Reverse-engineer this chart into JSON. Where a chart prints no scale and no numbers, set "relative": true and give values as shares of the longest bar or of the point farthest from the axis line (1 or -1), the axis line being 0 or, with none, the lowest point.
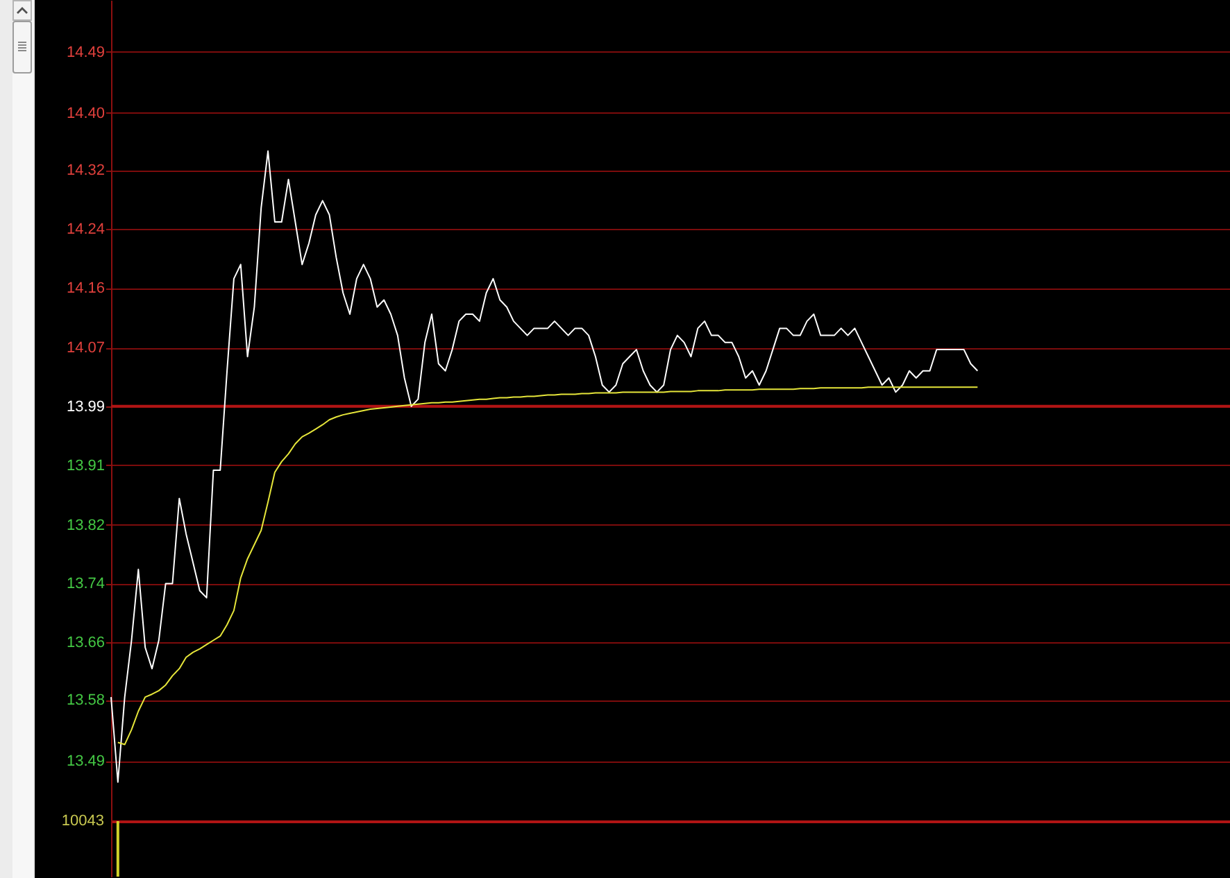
{
  "chart_data": [
    {
      "type": "line",
      "categories": [
        null,
        null,
        null,
        null,
        null,
        null,
        null,
        null,
        null,
        null,
        null,
        null,
        null,
        null,
        null,
        null,
        null,
        null,
        null,
        null,
        null,
        null,
        null,
        null,
        null,
        null,
        null,
        null,
        null,
        null,
        null,
        null,
        null,
        null,
        null,
        null,
        null,
        null,
        null,
        null,
        null,
        null,
        null,
        null,
        null,
        null,
        null,
        null,
        null,
        null,
        null,
        null,
        null,
        null,
        null,
        null,
        null,
        null,
        null,
        null,
        null,
        null,
        null,
        null,
        null,
        null,
        null,
        null,
        null,
        null,
        null,
        null,
        null,
        null,
        null,
        null,
        null,
        null,
        null,
        null,
        null,
        null,
        null,
        null,
        null,
        null,
        null,
        null,
        null,
        null,
        null,
        null,
        null,
        null,
        null,
        null,
        null,
        null,
        null,
        null,
        null,
        null,
        null,
        null,
        null,
        null,
        null,
        null,
        null,
        null,
        null,
        null,
        null,
        null,
        null,
        null,
        null,
        null,
        null,
        null,
        null,
        null,
        null,
        null,
        null,
        null,
        null,
        null,
        null,
        null,
        null,
        null,
        null,
        null,
        null,
        null,
        null,
        null,
        null,
        null,
        null,
        null,
        null,
        null,
        null,
        null,
        null,
        null,
        null,
        null,
        null,
        null,
        null,
        null,
        null,
        null,
        null,
        null,
        null,
        null,
        null,
        null,
        null,
        null,
        null
      ],
      "series": [
        {
          "color": "#ffffff",
          "values": [
            13.58,
            13.46,
            13.58,
            13.66,
            13.76,
            13.65,
            13.62,
            13.66,
            13.74,
            13.74,
            13.86,
            13.81,
            13.77,
            13.73,
            13.72,
            13.9,
            13.9,
            14.04,
            14.17,
            14.19,
            14.06,
            14.13,
            14.27,
            14.35,
            14.25,
            14.25,
            14.31,
            14.25,
            14.19,
            14.22,
            14.26,
            14.28,
            14.26,
            14.2,
            14.15,
            14.12,
            14.17,
            14.19,
            14.17,
            14.13,
            14.14,
            14.12,
            14.09,
            14.03,
            13.99,
            14.0,
            14.08,
            14.12,
            14.05,
            14.04,
            14.07,
            14.11,
            14.12,
            14.12,
            14.11,
            14.15,
            14.17,
            14.14,
            14.13,
            14.11,
            14.1,
            14.09,
            14.1,
            14.1,
            14.1,
            14.11,
            14.1,
            14.09,
            14.1,
            14.1,
            14.09,
            14.06,
            14.02,
            14.01,
            14.02,
            14.05,
            14.06,
            14.07,
            14.04,
            14.02,
            14.01,
            14.02,
            14.07,
            14.09,
            14.08,
            14.06,
            14.1,
            14.11,
            14.09,
            14.09,
            14.08,
            14.08,
            14.06,
            14.03,
            14.04,
            14.02,
            14.04,
            14.07,
            14.1,
            14.1,
            14.09,
            14.09,
            14.11,
            14.12,
            14.09,
            14.09,
            14.09,
            14.1,
            14.09,
            14.1,
            14.08,
            14.06,
            14.04,
            14.02,
            14.03,
            14.01,
            14.02,
            14.04,
            14.03,
            14.04,
            14.04,
            14.07,
            14.07,
            14.07,
            14.07,
            14.07,
            14.05,
            14.04,
            null,
            null,
            null,
            null,
            null,
            null,
            null,
            null,
            null,
            null,
            null,
            null,
            null,
            null,
            null,
            null,
            null,
            null,
            null,
            null,
            null,
            null,
            null,
            null,
            null,
            null,
            null,
            null,
            null,
            null,
            null,
            null,
            null,
            null,
            null,
            null,
            null
          ]
        },
        {
          "color": "#e6e63a",
          "values": [
            null,
            13.516,
            13.513,
            13.534,
            13.56,
            13.58,
            13.584,
            13.589,
            13.597,
            13.61,
            13.62,
            13.636,
            13.643,
            13.648,
            13.654,
            13.66,
            13.666,
            13.682,
            13.702,
            13.748,
            13.775,
            13.795,
            13.815,
            13.855,
            13.897,
            13.912,
            13.923,
            13.937,
            13.947,
            13.952,
            13.958,
            13.964,
            13.971,
            13.975,
            13.978,
            13.98,
            13.982,
            13.984,
            13.986,
            13.987,
            13.988,
            13.989,
            13.99,
            13.991,
            13.992,
            13.993,
            13.994,
            13.995,
            13.995,
            13.996,
            13.996,
            13.997,
            13.998,
            13.999,
            14.0,
            14.0,
            14.001,
            14.002,
            14.002,
            14.003,
            14.003,
            14.004,
            14.004,
            14.005,
            14.006,
            14.006,
            14.007,
            14.007,
            14.007,
            14.008,
            14.008,
            14.009,
            14.009,
            14.009,
            14.009,
            14.01,
            14.01,
            14.01,
            14.01,
            14.01,
            14.01,
            14.01,
            14.011,
            14.011,
            14.011,
            14.011,
            14.012,
            14.012,
            14.012,
            14.012,
            14.013,
            14.013,
            14.013,
            14.013,
            14.013,
            14.014,
            14.014,
            14.014,
            14.014,
            14.014,
            14.014,
            14.015,
            14.015,
            14.015,
            14.016,
            14.016,
            14.016,
            14.016,
            14.016,
            14.016,
            14.016,
            14.017,
            14.017,
            14.017,
            14.017,
            14.017,
            14.017,
            14.017,
            14.017,
            14.017,
            14.017,
            14.017,
            14.017,
            14.017,
            14.017,
            14.017,
            14.017,
            14.017,
            null,
            null,
            null,
            null,
            null,
            null,
            null,
            null,
            null,
            null,
            null,
            null,
            null,
            null,
            null,
            null,
            null,
            null,
            null,
            null,
            null,
            null,
            null,
            null,
            null,
            null,
            null,
            null,
            null,
            null,
            null,
            null,
            null,
            null,
            null,
            null,
            null
          ]
        }
      ],
      "ylim": [
        13.405,
        14.563
      ],
      "yticks": [
        13.49,
        {
          "value": 13.576,
          "label": "13.58"
        },
        {
          "value": 13.657,
          "label": "13.66"
        },
        13.74,
        {
          "value": 13.823,
          "label": "13.82"
        },
        {
          "value": 13.907,
          "label": "13.91"
        },
        13.99,
        {
          "value": 14.073,
          "label": "14.07"
        },
        {
          "value": 14.157,
          "label": "14.16"
        },
        14.24,
        {
          "value": 14.323,
          "label": "14.32"
        },
        {
          "value": 14.404,
          "label": "14.40"
        },
        14.49
      ],
      "grid": "y",
      "tick_labels": "y",
      "ref_lines": [
        {
          "axis": "y",
          "value": 13.99,
          "color": "#b01414"
        }
      ]
    },
    {
      "type": "bar",
      "categories": [
        null,
        null,
        null,
        null,
        null,
        null,
        null,
        null,
        null,
        null,
        null,
        null,
        null,
        null,
        null,
        null,
        null,
        null,
        null,
        null,
        null,
        null,
        null,
        null,
        null,
        null,
        null,
        null,
        null,
        null,
        null,
        null,
        null,
        null,
        null,
        null,
        null,
        null,
        null,
        null,
        null,
        null,
        null,
        null,
        null,
        null,
        null,
        null,
        null,
        null,
        null,
        null,
        null,
        null,
        null,
        null,
        null,
        null,
        null,
        null,
        null,
        null,
        null,
        null,
        null,
        null,
        null,
        null,
        null,
        null,
        null,
        null,
        null,
        null,
        null,
        null,
        null,
        null,
        null,
        null,
        null,
        null,
        null,
        null,
        null,
        null,
        null,
        null,
        null,
        null,
        null,
        null,
        null,
        null,
        null,
        null,
        null,
        null,
        null,
        null,
        null,
        null,
        null,
        null,
        null,
        null,
        null,
        null,
        null,
        null,
        null,
        null,
        null,
        null,
        null,
        null,
        null,
        null,
        null,
        null,
        null,
        null,
        null,
        null,
        null,
        null,
        null,
        null,
        null,
        null,
        null,
        null,
        null,
        null,
        null,
        null,
        null,
        null,
        null,
        null,
        null,
        null,
        null,
        null,
        null,
        null,
        null,
        null,
        null,
        null,
        null,
        null,
        null,
        null,
        null,
        null,
        null,
        null,
        null,
        null,
        null,
        null,
        null,
        null,
        null
      ],
      "values": [
        null,
        1,
        null,
        null,
        null,
        null,
        null,
        null,
        null,
        null,
        null,
        null,
        null,
        null,
        null,
        null,
        null,
        null,
        null,
        null,
        null,
        null,
        null,
        null,
        null,
        null,
        null,
        null,
        null,
        null,
        null,
        null,
        null,
        null,
        null,
        null,
        null,
        null,
        null,
        null,
        null,
        null,
        null,
        null,
        null,
        null,
        null,
        null,
        null,
        null,
        null,
        null,
        null,
        null,
        null,
        null,
        null,
        null,
        null,
        null,
        null,
        null,
        null,
        null,
        null,
        null,
        null,
        null,
        null,
        null,
        null,
        null,
        null,
        null,
        null,
        null,
        null,
        null,
        null,
        null,
        null,
        null,
        null,
        null,
        null,
        null,
        null,
        null,
        null,
        null,
        null,
        null,
        null,
        null,
        null,
        null,
        null,
        null,
        null,
        null,
        null,
        null,
        null,
        null,
        null,
        null,
        null,
        null,
        null,
        null,
        null,
        null,
        null,
        null,
        null,
        null,
        null,
        null,
        null,
        null,
        null,
        null,
        null,
        null,
        null,
        null,
        null,
        null,
        null,
        null,
        null,
        null,
        null,
        null,
        null,
        null,
        null,
        null,
        null,
        null,
        null,
        null,
        null,
        null,
        null,
        null,
        null,
        null,
        null,
        null,
        null,
        null,
        null,
        null,
        null,
        null,
        null,
        null,
        null,
        null,
        null,
        null,
        null,
        null,
        null
      ],
      "color": "#d2d22a",
      "relative": true,
      "annotations": [
        "10043"
      ]
    }
  ]
}
